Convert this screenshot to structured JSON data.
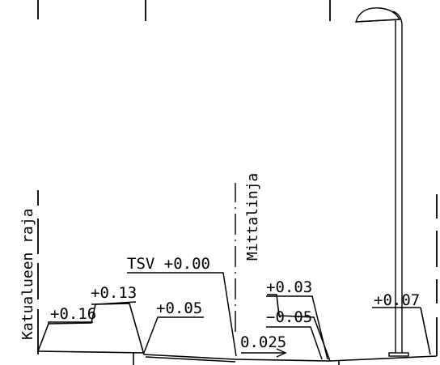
{
  "labels": {
    "boundary": "Katualueen raja",
    "measure_line": "Mittalinja",
    "tsv": "TSV +0.00",
    "h_left_outer": "+0.16",
    "h_left_inner": "+0.13",
    "h_median": "+0.05",
    "h_right_top": "+0.03",
    "h_right_low": "−0.05",
    "slope": "0.025",
    "h_right_edge": "+0.07"
  },
  "icons": {
    "street_lamp": "street-lamp-icon",
    "slope_arrow": "arrow-right-icon"
  },
  "colors": {
    "line": "#000000",
    "background": "#ffffff"
  }
}
